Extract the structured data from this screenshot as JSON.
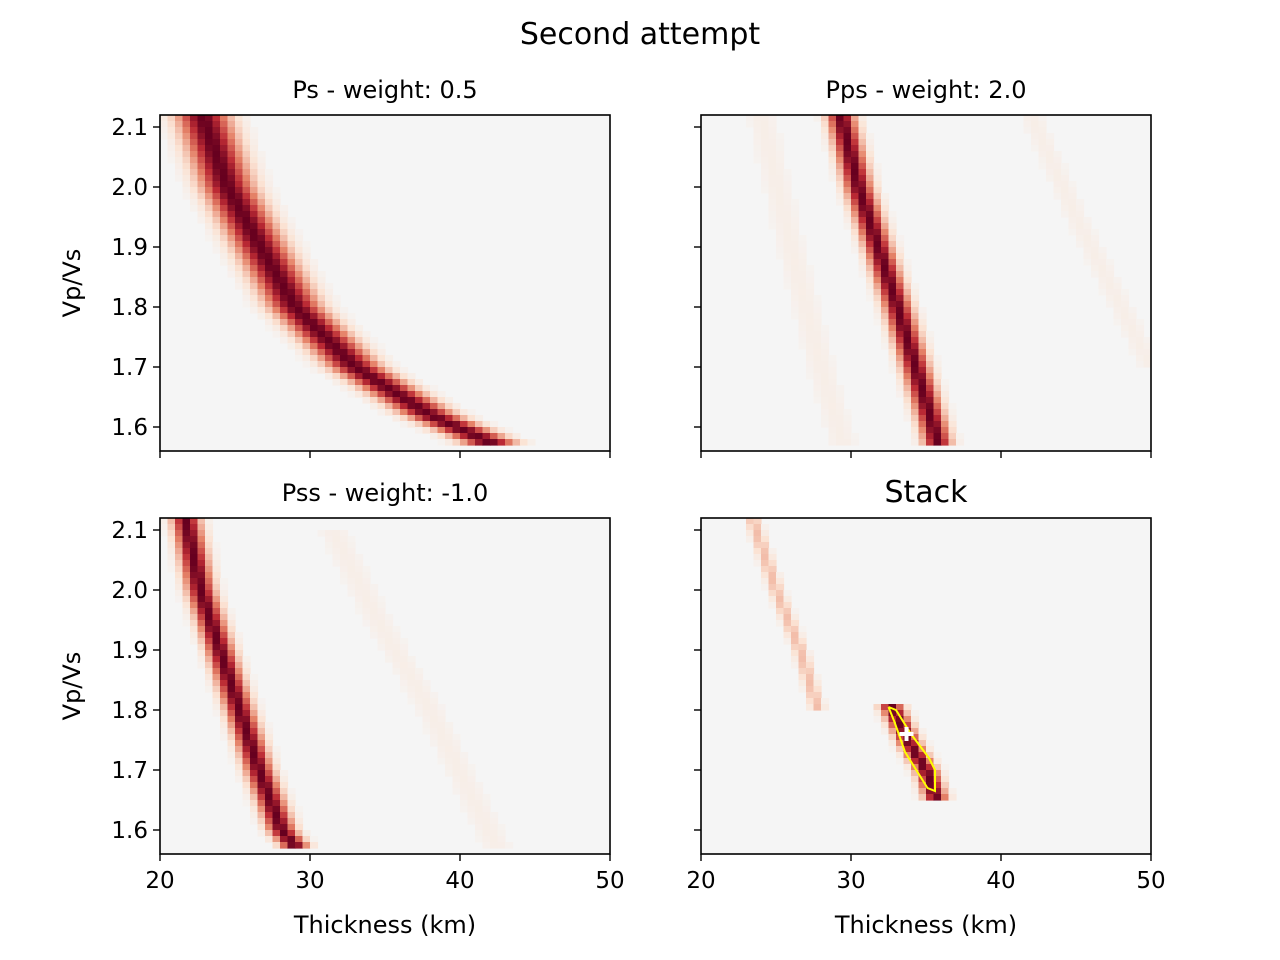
{
  "figure": {
    "suptitle": "Second attempt"
  },
  "colors": {
    "background": "#f5f5f5",
    "low": "#fbe3d4",
    "mid": "#e58268",
    "high": "#bb2a34",
    "peak": "#67001f",
    "contour": "#ffff00",
    "marker": "#ffffff"
  },
  "chart_data": [
    {
      "type": "heatmap",
      "title": "Ps - weight: 0.5",
      "xlabel": "",
      "ylabel": "Vp/Vs",
      "xlim": [
        20,
        50
      ],
      "ylim": [
        1.56,
        2.12
      ],
      "xticks": [
        20,
        30,
        40,
        50
      ],
      "yticks": [
        1.6,
        1.7,
        1.8,
        1.9,
        2.0,
        2.1
      ],
      "show_xticklabels": false,
      "show_yticklabels": true,
      "ridges": [
        {
          "points": [
            [
              22.8,
              2.12
            ],
            [
              24.5,
              2.0
            ],
            [
              26.7,
              1.9
            ],
            [
              29.0,
              1.8
            ],
            [
              33.0,
              1.7
            ],
            [
              38.0,
              1.62
            ],
            [
              41.5,
              1.58
            ],
            [
              42.3,
              1.57
            ]
          ],
          "halfwidth": 1.6,
          "amplitude": 1.0
        }
      ]
    },
    {
      "type": "heatmap",
      "title": "Pps - weight: 2.0",
      "xlabel": "",
      "ylabel": "",
      "xlim": [
        20,
        50
      ],
      "ylim": [
        1.56,
        2.12
      ],
      "xticks": [
        20,
        30,
        40,
        50
      ],
      "yticks": [
        1.6,
        1.7,
        1.8,
        1.9,
        2.0,
        2.1
      ],
      "show_xticklabels": false,
      "show_yticklabels": false,
      "ridges": [
        {
          "points": [
            [
              29.3,
              2.12
            ],
            [
              30.5,
              2.0
            ],
            [
              31.8,
              1.9
            ],
            [
              33.1,
              1.8
            ],
            [
              34.3,
              1.7
            ],
            [
              35.5,
              1.6
            ],
            [
              35.8,
              1.57
            ]
          ],
          "halfwidth": 0.85,
          "amplitude": 1.0
        },
        {
          "points": [
            [
              24.0,
              2.12
            ],
            [
              26.0,
              1.9
            ],
            [
              28.0,
              1.7
            ],
            [
              29.5,
              1.57
            ]
          ],
          "halfwidth": 1.0,
          "amplitude": 0.05
        },
        {
          "points": [
            [
              42.0,
              2.12
            ],
            [
              45.0,
              1.95
            ],
            [
              48.0,
              1.8
            ],
            [
              50.0,
              1.7
            ]
          ],
          "halfwidth": 0.8,
          "amplitude": 0.05
        }
      ]
    },
    {
      "type": "heatmap",
      "title": "Pss - weight: -1.0",
      "xlabel": "Thickness (km)",
      "ylabel": "Vp/Vs",
      "xlim": [
        20,
        50
      ],
      "ylim": [
        1.56,
        2.12
      ],
      "xticks": [
        20,
        30,
        40,
        50
      ],
      "yticks": [
        1.6,
        1.7,
        1.8,
        1.9,
        2.0,
        2.1
      ],
      "show_xticklabels": true,
      "show_yticklabels": true,
      "ridges": [
        {
          "points": [
            [
              21.7,
              2.12
            ],
            [
              22.7,
              2.0
            ],
            [
              24.0,
              1.9
            ],
            [
              25.3,
              1.8
            ],
            [
              26.6,
              1.7
            ],
            [
              28.1,
              1.6
            ],
            [
              29.1,
              1.57
            ]
          ],
          "halfwidth": 0.85,
          "amplitude": 1.0
        },
        {
          "points": [
            [
              31.5,
              2.1
            ],
            [
              34.5,
              1.95
            ],
            [
              38.0,
              1.8
            ],
            [
              40.5,
              1.67
            ],
            [
              42.5,
              1.57
            ]
          ],
          "halfwidth": 1.0,
          "amplitude": 0.05
        }
      ]
    },
    {
      "type": "heatmap",
      "title": "Stack",
      "xlabel": "Thickness (km)",
      "ylabel": "",
      "xlim": [
        20,
        50
      ],
      "ylim": [
        1.56,
        2.12
      ],
      "xticks": [
        20,
        30,
        40,
        50
      ],
      "yticks": [
        1.6,
        1.7,
        1.8,
        1.9,
        2.0,
        2.1
      ],
      "show_xticklabels": true,
      "show_yticklabels": false,
      "ridges": [
        {
          "points": [
            [
              23.4,
              2.12
            ],
            [
              25.0,
              2.0
            ],
            [
              26.6,
              1.9
            ],
            [
              27.8,
              1.8
            ]
          ],
          "halfwidth": 0.45,
          "amplitude": 0.25
        },
        {
          "points": [
            [
              32.6,
              1.81
            ],
            [
              34.0,
              1.74
            ],
            [
              35.0,
              1.7
            ],
            [
              35.7,
              1.65
            ]
          ],
          "halfwidth": 0.7,
          "amplitude": 1.0
        }
      ],
      "contour": [
        [
          32.5,
          1.805
        ],
        [
          33.0,
          1.8
        ],
        [
          34.0,
          1.76
        ],
        [
          35.2,
          1.72
        ],
        [
          35.6,
          1.7
        ],
        [
          35.6,
          1.665
        ],
        [
          35.1,
          1.67
        ],
        [
          33.6,
          1.73
        ],
        [
          32.9,
          1.78
        ],
        [
          32.5,
          1.805
        ]
      ],
      "best_fit": {
        "thickness": 33.7,
        "vpvs": 1.76
      }
    }
  ]
}
